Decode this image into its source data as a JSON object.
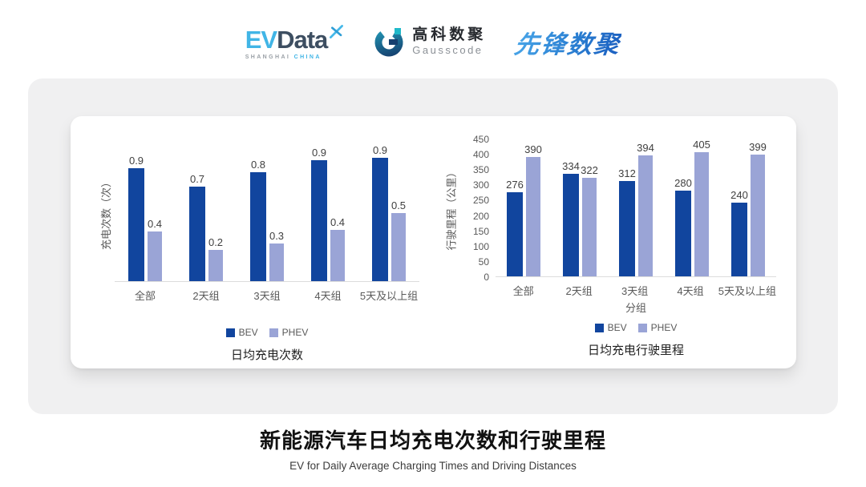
{
  "header": {
    "evdata": {
      "ev": "EV",
      "data": "Data",
      "tagline_left": "SHANGHAI",
      "tagline_right": "CHINA"
    },
    "gausscode": {
      "cn": "高科数聚",
      "en": "Gausscode"
    },
    "xianfeng": {
      "wordmark": "先锋数聚"
    }
  },
  "colors": {
    "bev": "#11459e",
    "phev": "#9aa4d6",
    "evdata_lightblue": "#41b5e6",
    "evdata_navy": "#3d4e61",
    "gauss_navy": "#153f6e",
    "gauss_teal": "#1fb9c9",
    "xianfeng_blue": "#2a7fd2",
    "card_gray": "#f0f0f1",
    "axis_gray": "#dcdcdc",
    "text_gray": "#595959"
  },
  "chart_data": [
    {
      "type": "bar",
      "title": "日均充电次数",
      "ylabel": "充电次数（次）",
      "xlabel": "",
      "categories": [
        "全部",
        "2天组",
        "3天组",
        "4天组",
        "5天及以上组"
      ],
      "series": [
        {
          "name": "BEV",
          "color": "#11459e",
          "values": [
            0.9,
            0.7,
            0.8,
            0.9,
            0.9
          ],
          "render_values": [
            0.86,
            0.72,
            0.83,
            0.92,
            0.94
          ]
        },
        {
          "name": "PHEV",
          "color": "#9aa4d6",
          "values": [
            0.4,
            0.2,
            0.3,
            0.4,
            0.5
          ],
          "render_values": [
            0.38,
            0.24,
            0.29,
            0.39,
            0.52
          ]
        }
      ],
      "ylim": [
        0,
        1.05
      ],
      "yticks": [],
      "grid": false,
      "legend": [
        "BEV",
        "PHEV"
      ],
      "legend_position": "bottom"
    },
    {
      "type": "bar",
      "title": "日均充电行驶里程",
      "ylabel": "行驶里程（公里）",
      "xlabel": "分组",
      "categories": [
        "全部",
        "2天组",
        "3天组",
        "4天组",
        "5天及以上组"
      ],
      "series": [
        {
          "name": "BEV",
          "color": "#11459e",
          "values": [
            276,
            334,
            312,
            280,
            240
          ]
        },
        {
          "name": "PHEV",
          "color": "#9aa4d6",
          "values": [
            390,
            322,
            394,
            405,
            399
          ]
        }
      ],
      "ylim": [
        0,
        450
      ],
      "yticks": [
        0,
        50,
        100,
        150,
        200,
        250,
        300,
        350,
        400,
        450
      ],
      "grid": false,
      "legend": [
        "BEV",
        "PHEV"
      ],
      "legend_position": "bottom"
    }
  ],
  "footer": {
    "title": "新能源汽车日均充电次数和行驶里程",
    "subtitle": "EV for Daily Average Charging Times and Driving Distances"
  }
}
